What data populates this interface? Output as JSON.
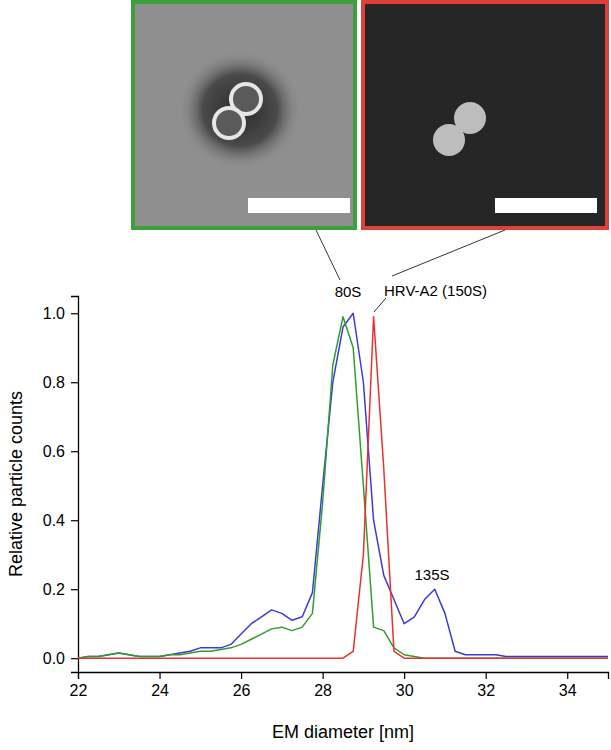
{
  "chart_data": {
    "type": "line",
    "x_label": "EM diameter [nm]",
    "y_label": "Relative particle counts",
    "annotations": [
      "80S",
      "HRV-A2 (150S)",
      "135S"
    ],
    "x": [
      22,
      22.25,
      22.5,
      22.75,
      23,
      23.25,
      23.5,
      23.75,
      24,
      24.25,
      24.5,
      24.75,
      25,
      25.25,
      25.5,
      25.75,
      26,
      26.25,
      26.5,
      26.75,
      27,
      27.25,
      27.5,
      27.75,
      28,
      28.25,
      28.5,
      28.75,
      29,
      29.25,
      29.5,
      29.75,
      30,
      30.25,
      30.5,
      30.75,
      31,
      31.25,
      31.5,
      31.75,
      32,
      32.25,
      32.5,
      32.75,
      33,
      33.25,
      33.5,
      33.75,
      34,
      34.25,
      34.5,
      34.75,
      35
    ],
    "series": [
      {
        "color": "#3b3bd9",
        "values": [
          0,
          0.005,
          0.005,
          0.01,
          0.015,
          0.01,
          0.005,
          0.005,
          0.005,
          0.01,
          0.015,
          0.02,
          0.03,
          0.03,
          0.03,
          0.04,
          0.07,
          0.1,
          0.12,
          0.14,
          0.13,
          0.11,
          0.12,
          0.19,
          0.5,
          0.8,
          0.96,
          1.0,
          0.8,
          0.4,
          0.24,
          0.17,
          0.1,
          0.12,
          0.17,
          0.2,
          0.13,
          0.02,
          0.01,
          0.01,
          0.01,
          0.01,
          0.005,
          0.005,
          0.005,
          0.005,
          0.005,
          0.005,
          0.005,
          0.005,
          0.005,
          0.005,
          0.005
        ]
      },
      {
        "color": "#2e9e2e",
        "values": [
          0,
          0.005,
          0.005,
          0.01,
          0.015,
          0.01,
          0.005,
          0.005,
          0.005,
          0.01,
          0.01,
          0.015,
          0.02,
          0.02,
          0.025,
          0.03,
          0.04,
          0.055,
          0.07,
          0.085,
          0.09,
          0.08,
          0.09,
          0.13,
          0.45,
          0.85,
          0.99,
          0.9,
          0.5,
          0.09,
          0.08,
          0.03,
          0.01,
          0.005,
          0,
          0,
          0,
          0,
          0,
          0,
          0,
          0,
          0,
          0,
          0,
          0,
          0,
          0,
          0,
          0,
          0,
          0,
          0
        ]
      },
      {
        "color": "#e8322c",
        "values": [
          0,
          0,
          0,
          0,
          0,
          0,
          0,
          0,
          0,
          0,
          0,
          0,
          0,
          0,
          0,
          0,
          0,
          0,
          0,
          0,
          0,
          0,
          0,
          0,
          0,
          0,
          0,
          0.02,
          0.3,
          0.99,
          0.55,
          0.02,
          0,
          0,
          0,
          0,
          0,
          0,
          0,
          0,
          0,
          0,
          0,
          0,
          0,
          0,
          0,
          0,
          0,
          0,
          0,
          0,
          0
        ]
      }
    ],
    "xlim": [
      22,
      35
    ],
    "xticks": [
      22,
      24,
      26,
      28,
      30,
      32,
      34
    ],
    "ylim": [
      -0.04,
      1.05
    ],
    "yticks": [
      {
        "value": 0,
        "label": "0.0"
      },
      0.2,
      0.4,
      0.6,
      0.8,
      {
        "value": 1,
        "label": "1.0"
      }
    ],
    "grid": false
  }
}
